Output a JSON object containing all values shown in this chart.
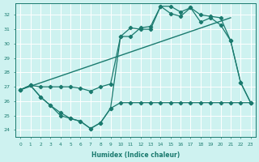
{
  "xlabel": "Humidex (Indice chaleur)",
  "xlim": [
    -0.5,
    23.5
  ],
  "ylim": [
    23.5,
    32.8
  ],
  "yticks": [
    24,
    25,
    26,
    27,
    28,
    29,
    30,
    31,
    32
  ],
  "xticks": [
    0,
    1,
    2,
    3,
    4,
    5,
    6,
    7,
    8,
    9,
    10,
    11,
    12,
    13,
    14,
    15,
    16,
    17,
    18,
    19,
    20,
    21,
    22,
    23
  ],
  "bg_color": "#cef2f0",
  "grid_color": "#ffffff",
  "line_color": "#1a7a6e",
  "curve_main_x": [
    0,
    1,
    2,
    3,
    4,
    5,
    6,
    7,
    8,
    9,
    10,
    11,
    12,
    13,
    14,
    15,
    16,
    17,
    18,
    19,
    20,
    21,
    22,
    23
  ],
  "curve_main_y": [
    26.8,
    27.1,
    26.3,
    25.7,
    25.0,
    24.8,
    24.6,
    24.1,
    24.5,
    25.5,
    30.5,
    31.1,
    31.0,
    31.0,
    32.6,
    32.6,
    32.2,
    32.5,
    31.5,
    31.8,
    31.3,
    30.2,
    27.3,
    25.9
  ],
  "curve_upper_x": [
    0,
    1,
    2,
    3,
    4,
    5,
    6,
    7,
    8,
    9,
    10,
    11,
    12,
    13,
    14,
    15,
    16,
    17,
    18,
    19,
    20,
    21,
    22,
    23
  ],
  "curve_upper_y": [
    26.8,
    27.1,
    27.0,
    27.0,
    27.0,
    27.0,
    26.9,
    26.7,
    27.0,
    27.2,
    30.5,
    30.5,
    31.1,
    31.2,
    32.6,
    32.1,
    31.9,
    32.5,
    32.0,
    31.9,
    31.8,
    30.2,
    27.3,
    25.9
  ],
  "curve_flat_x": [
    0,
    1,
    2,
    3,
    4,
    5,
    6,
    7,
    8,
    9,
    10,
    11,
    12,
    13,
    14,
    15,
    16,
    17,
    18,
    19,
    20,
    21,
    22,
    23
  ],
  "curve_flat_y": [
    26.8,
    27.1,
    26.3,
    25.7,
    25.2,
    24.8,
    24.6,
    24.1,
    24.5,
    25.5,
    25.9,
    25.9,
    25.9,
    25.9,
    25.9,
    25.9,
    25.9,
    25.9,
    25.9,
    25.9,
    25.9,
    25.9,
    25.9,
    25.9
  ],
  "trend_x": [
    0,
    21
  ],
  "trend_y": [
    26.8,
    31.8
  ]
}
